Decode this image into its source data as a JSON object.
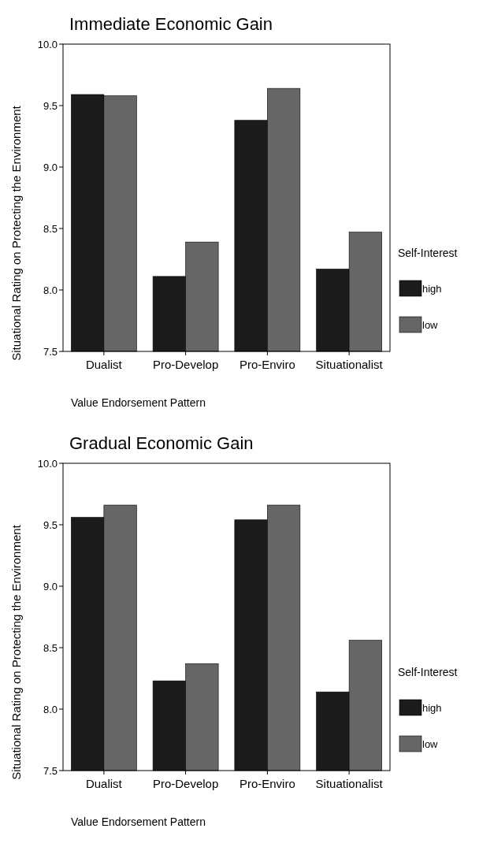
{
  "chart_data": [
    {
      "type": "bar",
      "title": "Immediate Economic Gain",
      "xlabel": "Value Endorsement Pattern",
      "ylabel": "Situational Rating on Protecting the Environment",
      "legend_title": "Self-Interest",
      "legend": "right",
      "categories": [
        "Dualist",
        "Pro-Develop",
        "Pro-Enviro",
        "Situationalist"
      ],
      "ylim": [
        7.5,
        10
      ],
      "yticks": [
        {
          "value": 7.5,
          "label": "7.5"
        },
        {
          "value": 8,
          "label": "8.0"
        },
        {
          "value": 8.5,
          "label": "8.5"
        },
        {
          "value": 9,
          "label": "9.0"
        },
        {
          "value": 9.5,
          "label": "9.5"
        },
        {
          "value": 10,
          "label": "10.0"
        }
      ],
      "series": [
        {
          "name": "high",
          "color": "#1b1b1b",
          "values": [
            9.59,
            8.11,
            9.38,
            8.17
          ]
        },
        {
          "name": "low",
          "color": "#666666",
          "values": [
            9.58,
            8.39,
            9.64,
            8.47
          ]
        }
      ]
    },
    {
      "type": "bar",
      "title": "Gradual Economic Gain",
      "xlabel": "Value Endorsement Pattern",
      "ylabel": "Situational Rating on Protecting the Environment",
      "legend_title": "Self-Interest",
      "legend": "right",
      "categories": [
        "Dualist",
        "Pro-Develop",
        "Pro-Enviro",
        "Situationalist"
      ],
      "ylim": [
        7.5,
        10
      ],
      "yticks": [
        {
          "value": 7.5,
          "label": "7.5"
        },
        {
          "value": 8,
          "label": "8.0"
        },
        {
          "value": 8.5,
          "label": "8.5"
        },
        {
          "value": 9,
          "label": "9.0"
        },
        {
          "value": 9.5,
          "label": "9.5"
        },
        {
          "value": 10,
          "label": "10.0"
        }
      ],
      "series": [
        {
          "name": "high",
          "color": "#1b1b1b",
          "values": [
            9.56,
            8.23,
            9.54,
            8.14
          ]
        },
        {
          "name": "low",
          "color": "#666666",
          "values": [
            9.66,
            8.37,
            9.66,
            8.56
          ]
        }
      ]
    }
  ]
}
